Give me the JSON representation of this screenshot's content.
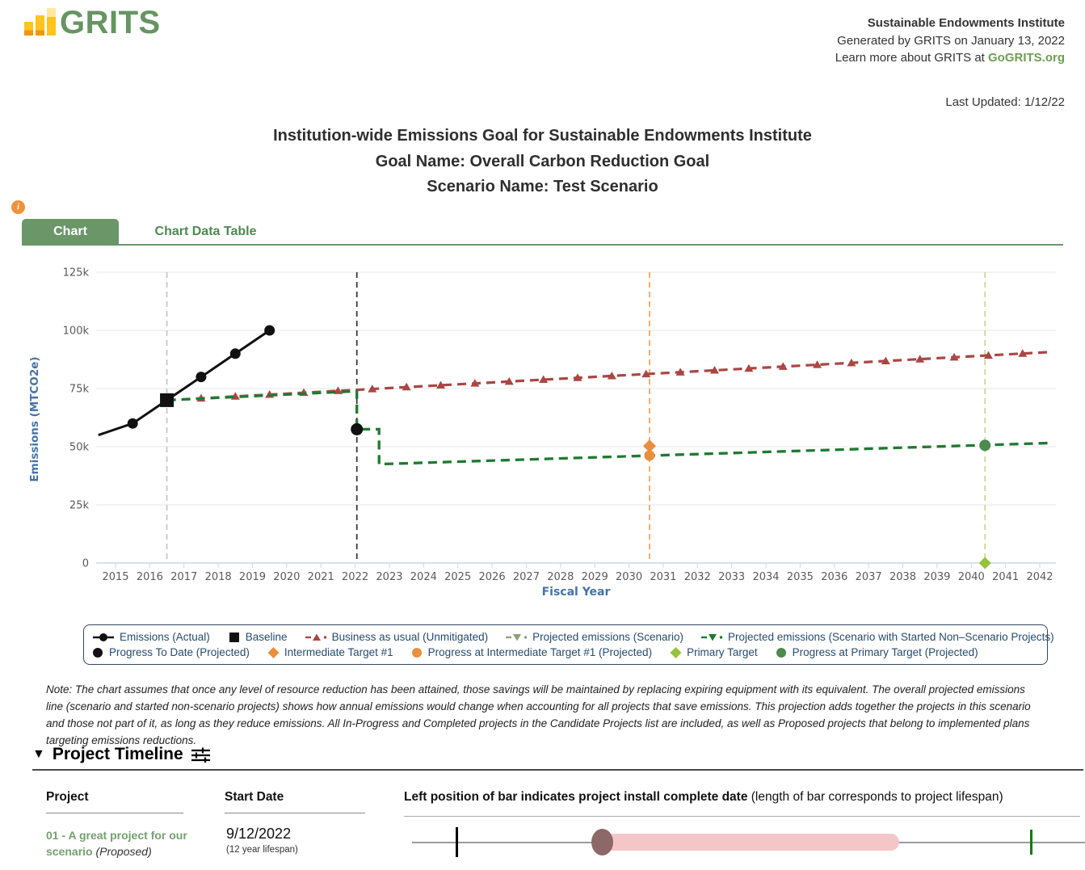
{
  "header": {
    "logo_text": "GRITS",
    "org_name": "Sustainable Endowments Institute",
    "generated_line": "Generated by GRITS on January 13, 2022",
    "learn_more_prefix": "Learn more about GRITS at ",
    "learn_more_link": "GoGRITS.org",
    "last_updated": "Last Updated: 1/12/22"
  },
  "title": {
    "line1": "Institution-wide Emissions Goal for Sustainable Endowments Institute",
    "line2": "Goal Name: Overall Carbon Reduction Goal",
    "line3": "Scenario Name: Test Scenario"
  },
  "tabs": {
    "info_icon": "i",
    "active": "Chart",
    "inactive": "Chart Data Table"
  },
  "chart_data": {
    "type": "line",
    "xlabel": "Fiscal Year",
    "ylabel": "Emissions (MTCO2e)",
    "xlim": [
      2014.45,
      2042.45
    ],
    "ylim": [
      0,
      125000
    ],
    "yticks": [
      0,
      25000,
      50000,
      75000,
      100000,
      125000
    ],
    "ytick_labels": [
      "0",
      "25k",
      "50k",
      "75k",
      "100k",
      "125k"
    ],
    "xticks": [
      2015,
      2016,
      2017,
      2018,
      2019,
      2020,
      2021,
      2022,
      2023,
      2024,
      2025,
      2026,
      2027,
      2028,
      2029,
      2030,
      2031,
      2032,
      2033,
      2034,
      2035,
      2036,
      2037,
      2038,
      2039,
      2040,
      2041,
      2042
    ],
    "grid": true,
    "legend_position": "bottom",
    "vertical_lines": [
      {
        "name": "baseline-year-line",
        "x": 2016.5,
        "color": "#c8c8c8"
      },
      {
        "name": "current-date-line",
        "x": 2022.05,
        "color": "#3a3a3a"
      },
      {
        "name": "intermediate-target-year-line",
        "x": 2030.6,
        "color": "#F2A45F"
      },
      {
        "name": "primary-target-year-line",
        "x": 2040.4,
        "color": "#C7DC91"
      }
    ],
    "series": [
      {
        "name": "Business as usual (Unmitigated)",
        "color": "#AA4643",
        "dash": true,
        "marker": "triangle-up",
        "points": [
          [
            2016.5,
            70000
          ],
          [
            2042.3,
            90700
          ]
        ],
        "marker_points": [
          [
            2016.5,
            70000
          ],
          [
            2017.5,
            70800
          ],
          [
            2018.5,
            71600
          ],
          [
            2019.5,
            72400
          ],
          [
            2020.5,
            73200
          ],
          [
            2021.5,
            74000
          ],
          [
            2022.5,
            74800
          ],
          [
            2023.5,
            75600
          ],
          [
            2024.5,
            76400
          ],
          [
            2025.5,
            77200
          ],
          [
            2026.5,
            78000
          ],
          [
            2027.5,
            78800
          ],
          [
            2028.5,
            79600
          ],
          [
            2029.5,
            80400
          ],
          [
            2030.5,
            81200
          ],
          [
            2031.5,
            82000
          ],
          [
            2032.5,
            82800
          ],
          [
            2033.5,
            83600
          ],
          [
            2034.5,
            84400
          ],
          [
            2035.5,
            85200
          ],
          [
            2036.5,
            86000
          ],
          [
            2037.5,
            86800
          ],
          [
            2038.5,
            87600
          ],
          [
            2039.5,
            88400
          ],
          [
            2040.5,
            89200
          ],
          [
            2041.5,
            90000
          ]
        ]
      },
      {
        "name": "Projected emissions (Scenario)",
        "color": "#8BA17E",
        "dash": true,
        "marker": "triangle-down",
        "points": [
          [
            2016.5,
            70000
          ],
          [
            2022.05,
            73900
          ],
          [
            2022.05,
            57500
          ],
          [
            2022.7,
            57500
          ],
          [
            2022.7,
            42500
          ],
          [
            2042.3,
            51600
          ]
        ],
        "marker_points": []
      },
      {
        "name": "Projected emissions (Scenario with Started Non–Scenario Projects)",
        "color": "#1E7A30",
        "dash": true,
        "marker": "triangle-down",
        "points": [
          [
            2016.5,
            70000
          ],
          [
            2022.05,
            73900
          ],
          [
            2022.05,
            57500
          ],
          [
            2022.7,
            57500
          ],
          [
            2022.7,
            42500
          ],
          [
            2042.3,
            51600
          ]
        ],
        "marker_points": []
      },
      {
        "name": "Emissions (Actual)",
        "color": "#111111",
        "dash": false,
        "marker": "circle",
        "points": [
          [
            2014.5,
            55000
          ],
          [
            2015.5,
            60000
          ],
          [
            2016.5,
            70000
          ],
          [
            2017.5,
            80000
          ],
          [
            2018.5,
            90000
          ],
          [
            2019.5,
            100000
          ]
        ],
        "marker_points": [
          [
            2015.5,
            60000
          ],
          [
            2017.5,
            80000
          ],
          [
            2018.5,
            90000
          ],
          [
            2019.5,
            100000
          ]
        ]
      }
    ],
    "point_markers": [
      {
        "name": "Baseline",
        "shape": "square",
        "color": "#111111",
        "x": 2016.5,
        "y": 70000,
        "size": 17
      },
      {
        "name": "Progress To Date (Projected)",
        "shape": "circle",
        "color": "#111111",
        "x": 2022.05,
        "y": 57500,
        "size": 15
      },
      {
        "name": "Intermediate Target #1",
        "shape": "diamond",
        "color": "#E98F3E",
        "x": 2030.6,
        "y": 50300,
        "size": 14
      },
      {
        "name": "Progress at Intermediate Target #1 (Projected)",
        "shape": "circle",
        "color": "#E98F3E",
        "x": 2030.6,
        "y": 46200,
        "size": 13
      },
      {
        "name": "Primary Target",
        "shape": "diamond",
        "color": "#97C23C",
        "x": 2040.4,
        "y": 0,
        "size": 13
      },
      {
        "name": "Progress at Primary Target (Projected)",
        "shape": "circle",
        "color": "#4C8A4E",
        "x": 2040.4,
        "y": 50600,
        "size": 14
      }
    ]
  },
  "legend": {
    "rows": [
      [
        {
          "label": "Emissions (Actual)",
          "icon": "line-circle",
          "color": "#111111"
        },
        {
          "label": "Baseline",
          "icon": "square",
          "color": "#111111"
        },
        {
          "label": "Business as usual (Unmitigated)",
          "icon": "dash-triangle-up",
          "color": "#AA4643"
        },
        {
          "label": "Projected emissions (Scenario)",
          "icon": "dash-triangle-down",
          "color": "#8BA17E"
        },
        {
          "label": "Projected emissions (Scenario with Started Non–Scenario Projects)",
          "icon": "dash-triangle-down",
          "color": "#1E7A30"
        }
      ],
      [
        {
          "label": "Progress To Date (Projected)",
          "icon": "circle",
          "color": "#111111"
        },
        {
          "label": "Intermediate Target #1",
          "icon": "diamond",
          "color": "#E98F3E"
        },
        {
          "label": "Progress at Intermediate Target #1 (Projected)",
          "icon": "circle",
          "color": "#E98F3E"
        },
        {
          "label": "Primary Target",
          "icon": "diamond",
          "color": "#97C23C"
        },
        {
          "label": "Progress at Primary Target (Projected)",
          "icon": "circle",
          "color": "#4C8A4E"
        }
      ]
    ]
  },
  "note": "Note: The chart assumes that once any level of resource reduction has been attained, those savings will be maintained by replacing expiring equipment with its equivalent. The overall projected emissions line (scenario and started non-scenario projects) shows how annual emissions would change when accounting for all projects that save emissions. This projection adds together the projects in this scenario and those not part of it, as long as they reduce emissions. All In-Progress and Completed projects in the Candidate Projects list are included, as well as Proposed projects that belong to implemented plans targeting emissions reductions.",
  "timeline": {
    "collapse_icon": "▼",
    "heading": "Project Timeline",
    "col_project": "Project",
    "col_start": "Start Date",
    "col_bar_bold": "Left position of bar indicates project install complete date",
    "col_bar_normal": " (length of bar corresponds to project lifespan)",
    "rows": [
      {
        "name": "01 - A great project for our scenario",
        "status": " (Proposed)",
        "start_date": "9/12/2022",
        "lifespan": "(12 year lifespan)"
      }
    ]
  },
  "colors": {
    "accent_green": "#6A9668",
    "link_green": "#6F9D53",
    "logo_green": "#669562",
    "info_orange": "#F0913B",
    "axis_blue": "#4572A7",
    "legend_text": "#274B6D",
    "bau_red": "#AA4643",
    "scenario_sage": "#8BA17E",
    "scenario_dark_green": "#1E7A30",
    "target_orange": "#E98F3E",
    "primary_lime": "#97C23C",
    "progress_green": "#4C8A4E",
    "timeline_bar_pink": "#F4C6C8",
    "timeline_dot_brown": "#8C6868"
  }
}
